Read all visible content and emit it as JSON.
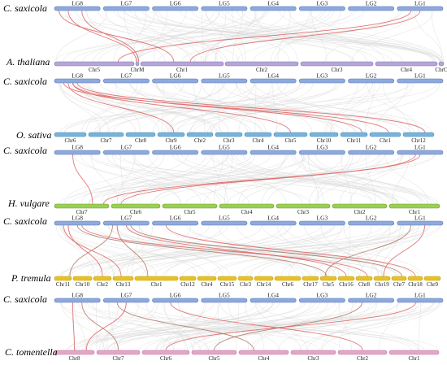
{
  "colors": {
    "background_link": "#d9d9d9",
    "highlight_link": "#e06666",
    "highlight_link_alt": "#b07a6a",
    "saxicola_bar": "#8ea9db",
    "saxicola_bar_edge": "#5b7bb8",
    "thaliana_bar": "#b4a7d6",
    "sativa_bar": "#79b3d9",
    "vulgare_bar": "#9bcf53",
    "tremula_bar": "#e6c229",
    "tomentella_bar": "#e3a6c7"
  },
  "saxicola_chromosomes": [
    "LG8",
    "LG7",
    "LG6",
    "LG5",
    "LG4",
    "LG3",
    "LG2",
    "LG1"
  ],
  "panels": [
    {
      "ref_label": "C. saxicola",
      "species_label": "A. thaliana",
      "target_chromosomes": [
        "Chr5",
        "ChrM",
        "Chr1",
        "Chr2",
        "Chr3",
        "Chr4",
        "ChrC"
      ]
    },
    {
      "ref_label": "C. saxicola",
      "species_label": "O. sativa",
      "target_chromosomes": [
        "Chr6",
        "Chr7",
        "Chr8",
        "Chr9",
        "Chr2",
        "Chr3",
        "Chr4",
        "Chr5",
        "Chr10",
        "Chr11",
        "Chr1",
        "Chr12"
      ]
    },
    {
      "ref_label": "C. saxicola",
      "species_label": "H. vulgare",
      "target_chromosomes": [
        "Chr7",
        "Chr6",
        "Chr5",
        "Chr4",
        "Chr3",
        "Chr2",
        "Chr1"
      ]
    },
    {
      "ref_label": "C. saxicola",
      "species_label": "P. tremula",
      "target_chromosomes": [
        "Chr11",
        "Chr10",
        "Chr2",
        "Chr13",
        "Chr1",
        "Chr12",
        "Chr4",
        "Chr15",
        "Chr3",
        "Chr14",
        "Chr6",
        "Chr17",
        "Chr5",
        "Chr16",
        "Chr8",
        "Chr19",
        "Chr7",
        "Chr18",
        "Chr9"
      ]
    },
    {
      "ref_label": "C. saxicola",
      "species_label": "C. tomentella",
      "target_chromosomes": [
        "Chr8",
        "Chr7",
        "Chr6",
        "Chr5",
        "Chr4",
        "Chr3",
        "Chr2",
        "Chr1"
      ]
    }
  ]
}
